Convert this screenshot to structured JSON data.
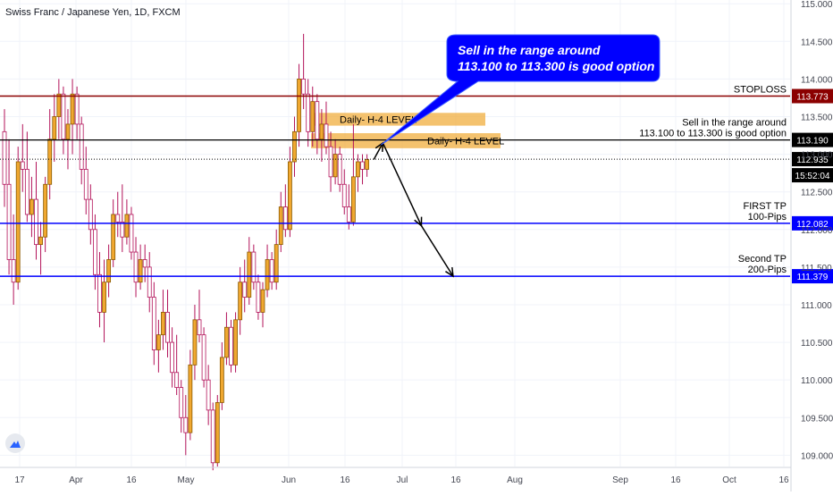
{
  "header": {
    "symbol_title": "Swiss Franc / Japanese Yen, 1D, FXCM"
  },
  "colors": {
    "bull": "#f0a830",
    "bear": "#b3135a",
    "plot_bg": "#e1e4ee",
    "stoploss": "#8b0000",
    "entry": "#000000",
    "tp": "#0000ff",
    "zone": "#f0a830",
    "callout_bg": "#0000ff",
    "axis_text": "#434651"
  },
  "chart_data": {
    "type": "candlestick",
    "instrument": "Swiss Franc / Japanese Yen",
    "timeframe": "1D",
    "source": "FXCM",
    "ylim": [
      108.85,
      115.05
    ],
    "y_ticks": [
      "109.000",
      "109.500",
      "110.000",
      "110.500",
      "111.000",
      "111.500",
      "112.000",
      "112.500",
      "113.000",
      "113.500",
      "114.000",
      "114.500",
      "115.000"
    ],
    "x_ticks": [
      "17",
      "Apr",
      "16",
      "May",
      "Jun",
      "16",
      "Jul",
      "16",
      "Aug",
      "Sep",
      "16",
      "Oct",
      "16"
    ],
    "candles": [
      [
        113.3,
        113.6,
        112.3,
        112.6
      ],
      [
        112.6,
        113.2,
        111.4,
        111.6
      ],
      [
        111.6,
        112.2,
        111.0,
        111.3
      ],
      [
        111.3,
        113.1,
        111.2,
        112.9
      ],
      [
        112.9,
        113.4,
        112.5,
        112.8
      ],
      [
        112.8,
        113.3,
        112.1,
        112.2
      ],
      [
        112.2,
        112.7,
        111.9,
        112.4
      ],
      [
        112.4,
        112.9,
        111.6,
        111.8
      ],
      [
        111.8,
        112.1,
        111.4,
        111.9
      ],
      [
        111.9,
        112.7,
        111.7,
        112.6
      ],
      [
        112.6,
        113.6,
        112.4,
        113.2
      ],
      [
        113.2,
        113.8,
        112.9,
        113.5
      ],
      [
        113.5,
        114.0,
        113.2,
        113.8
      ],
      [
        113.8,
        113.9,
        113.0,
        113.2
      ],
      [
        113.2,
        113.6,
        112.8,
        113.4
      ],
      [
        113.4,
        114.0,
        113.0,
        113.8
      ],
      [
        113.8,
        113.9,
        113.2,
        113.4
      ],
      [
        113.4,
        113.5,
        112.6,
        112.8
      ],
      [
        112.8,
        113.1,
        112.2,
        112.4
      ],
      [
        112.4,
        112.6,
        111.8,
        112.0
      ],
      [
        112.0,
        112.2,
        111.2,
        111.4
      ],
      [
        111.4,
        111.7,
        110.7,
        110.9
      ],
      [
        110.9,
        111.6,
        110.5,
        111.3
      ],
      [
        111.3,
        111.8,
        111.1,
        111.6
      ],
      [
        111.6,
        112.4,
        111.5,
        112.2
      ],
      [
        112.2,
        112.5,
        111.9,
        112.1
      ],
      [
        112.1,
        112.6,
        111.7,
        111.9
      ],
      [
        111.9,
        112.4,
        111.8,
        112.2
      ],
      [
        112.2,
        112.3,
        111.6,
        111.7
      ],
      [
        111.7,
        111.9,
        111.1,
        111.3
      ],
      [
        111.3,
        111.8,
        111.2,
        111.6
      ],
      [
        111.6,
        111.8,
        111.3,
        111.5
      ],
      [
        111.5,
        111.7,
        110.9,
        111.1
      ],
      [
        111.1,
        111.3,
        110.2,
        110.4
      ],
      [
        110.4,
        110.8,
        110.1,
        110.6
      ],
      [
        110.6,
        111.2,
        110.4,
        110.9
      ],
      [
        110.9,
        111.2,
        110.3,
        110.5
      ],
      [
        110.5,
        110.7,
        109.9,
        110.1
      ],
      [
        110.1,
        110.6,
        109.8,
        109.9
      ],
      [
        109.9,
        110.0,
        109.3,
        109.5
      ],
      [
        109.5,
        109.8,
        109.0,
        109.3
      ],
      [
        109.3,
        110.4,
        109.2,
        110.2
      ],
      [
        110.2,
        111.0,
        110.0,
        110.8
      ],
      [
        110.8,
        111.2,
        110.5,
        110.6
      ],
      [
        110.6,
        110.7,
        109.9,
        110.0
      ],
      [
        110.0,
        110.2,
        109.4,
        109.6
      ],
      [
        109.6,
        109.7,
        108.8,
        108.9
      ],
      [
        108.9,
        109.8,
        108.85,
        109.7
      ],
      [
        109.7,
        110.5,
        109.6,
        110.3
      ],
      [
        110.3,
        110.9,
        110.2,
        110.7
      ],
      [
        110.7,
        110.8,
        110.1,
        110.2
      ],
      [
        110.2,
        110.9,
        110.1,
        110.8
      ],
      [
        110.8,
        111.5,
        110.6,
        111.3
      ],
      [
        111.3,
        111.6,
        110.9,
        111.1
      ],
      [
        111.1,
        111.9,
        111.0,
        111.7
      ],
      [
        111.7,
        111.8,
        111.2,
        111.3
      ],
      [
        111.3,
        111.4,
        110.8,
        110.9
      ],
      [
        110.9,
        111.3,
        110.7,
        111.2
      ],
      [
        111.2,
        111.8,
        111.1,
        111.6
      ],
      [
        111.6,
        111.7,
        111.2,
        111.3
      ],
      [
        111.3,
        112.0,
        111.2,
        111.8
      ],
      [
        111.8,
        112.5,
        111.7,
        112.3
      ],
      [
        112.3,
        112.6,
        111.9,
        112.0
      ],
      [
        112.0,
        113.1,
        111.9,
        112.9
      ],
      [
        112.9,
        113.5,
        112.7,
        113.3
      ],
      [
        113.3,
        114.2,
        113.1,
        114.0
      ],
      [
        114.0,
        114.6,
        113.6,
        113.8
      ],
      [
        113.8,
        114.0,
        113.1,
        113.3
      ],
      [
        113.3,
        113.9,
        113.1,
        113.7
      ],
      [
        113.7,
        113.8,
        113.0,
        113.2
      ],
      [
        113.2,
        113.6,
        112.9,
        113.4
      ],
      [
        113.4,
        113.7,
        113.0,
        113.1
      ],
      [
        113.1,
        113.3,
        112.5,
        112.7
      ],
      [
        112.7,
        113.2,
        112.6,
        113.0
      ],
      [
        113.0,
        113.1,
        112.5,
        112.6
      ],
      [
        112.6,
        112.8,
        112.2,
        112.3
      ],
      [
        112.3,
        112.6,
        112.0,
        112.1
      ],
      [
        112.1,
        113.4,
        112.05,
        112.7
      ],
      [
        112.7,
        113.0,
        112.5,
        112.9
      ],
      [
        112.9,
        113.0,
        112.6,
        112.8
      ],
      [
        112.8,
        113.0,
        112.7,
        112.93
      ]
    ],
    "horizontal_levels": [
      {
        "name": "STOPLOSS",
        "label": "STOPLOSS",
        "value": 113.773,
        "tag": "113.773",
        "color": "#8b0000"
      },
      {
        "name": "entry",
        "label_lines": [
          "Sell in the range around",
          "113.100 to 113.300 is good option"
        ],
        "value": 113.19,
        "tag": "113.190",
        "color": "#000000"
      },
      {
        "name": "FIRST TP",
        "label_lines": [
          "FIRST TP",
          "100-Pips"
        ],
        "value": 112.082,
        "tag": "112.082",
        "color": "#0000ff"
      },
      {
        "name": "Second TP",
        "label_lines": [
          "Second TP",
          "200-Pips"
        ],
        "value": 111.379,
        "tag": "111.379",
        "color": "#0000ff"
      }
    ],
    "current_price": {
      "value": 112.935,
      "tag": "112.935",
      "countdown": "15:52:04"
    },
    "zones": [
      {
        "label": "Daily- H-4 LEVEL",
        "top": 113.55,
        "bottom": 113.38
      },
      {
        "label": "Daily- H-4 LEVEL",
        "top": 113.28,
        "bottom": 113.08
      }
    ],
    "callout": {
      "lines": [
        "Sell in the range around",
        "113.100 to 113.300 is good option"
      ]
    },
    "projection": [
      {
        "bar": 81.5,
        "price": 112.93
      },
      {
        "bar": 83.5,
        "price": 113.15
      },
      {
        "bar": 92.0,
        "price": 112.05
      },
      {
        "bar": 99.0,
        "price": 111.38
      }
    ]
  }
}
